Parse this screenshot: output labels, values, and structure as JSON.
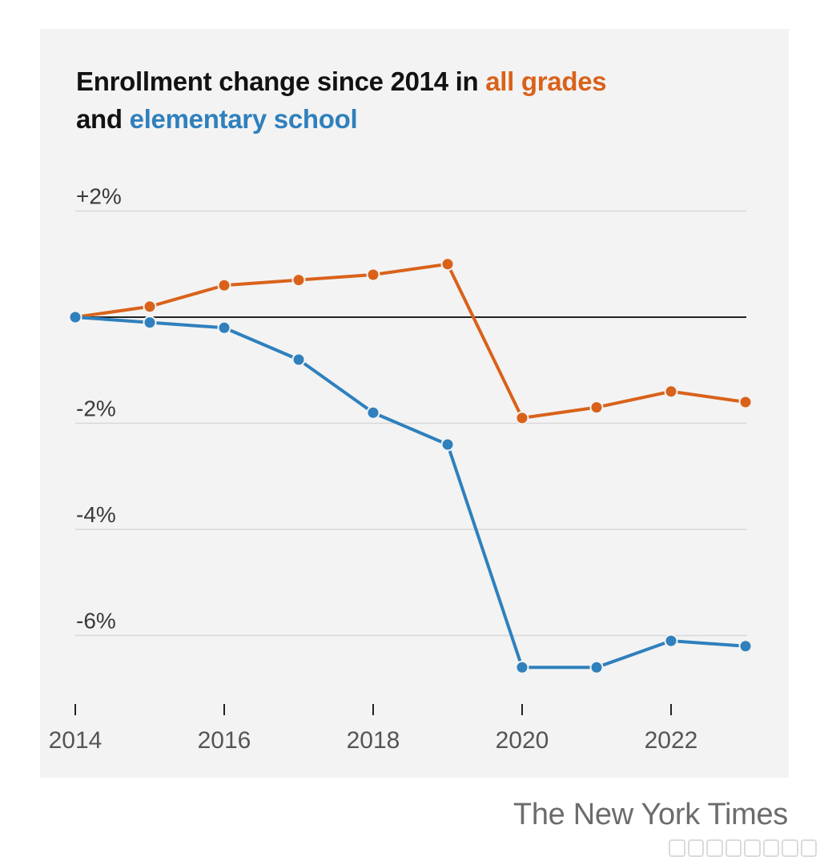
{
  "title_parts": {
    "prefix": "Enrollment change since 2014 in ",
    "series1": "all grades",
    "connector": "and ",
    "series2": "elementary school"
  },
  "footer": "The New York Times",
  "colors": {
    "all_grades": "#d9621a",
    "elementary": "#2f80bd",
    "zero_line": "#222222",
    "grid": "#d8d8d8",
    "background": "#f3f3f3"
  },
  "chart_data": {
    "type": "line",
    "x": [
      2014,
      2015,
      2016,
      2017,
      2018,
      2019,
      2020,
      2021,
      2022,
      2023
    ],
    "series": [
      {
        "name": "all grades",
        "color": "#d9621a",
        "values": [
          0,
          0.2,
          0.6,
          0.7,
          0.8,
          1.0,
          -1.9,
          -1.7,
          -1.4,
          -1.6
        ]
      },
      {
        "name": "elementary school",
        "color": "#2f80bd",
        "values": [
          0,
          -0.1,
          -0.2,
          -0.8,
          -1.8,
          -2.4,
          -6.6,
          -6.6,
          -6.1,
          -6.2
        ]
      }
    ],
    "y_ticks": [
      2,
      -2,
      -4,
      -6
    ],
    "y_tick_labels": [
      "+2%",
      "-2%",
      "-4%",
      "-6%"
    ],
    "x_ticks": [
      2014,
      2016,
      2018,
      2020,
      2022
    ],
    "x_tick_labels": [
      "2014",
      "2016",
      "2018",
      "2020",
      "2022"
    ],
    "ylim": [
      -7.3,
      2
    ],
    "xlim": [
      2014,
      2023
    ],
    "grid": true,
    "zero_line": true
  }
}
